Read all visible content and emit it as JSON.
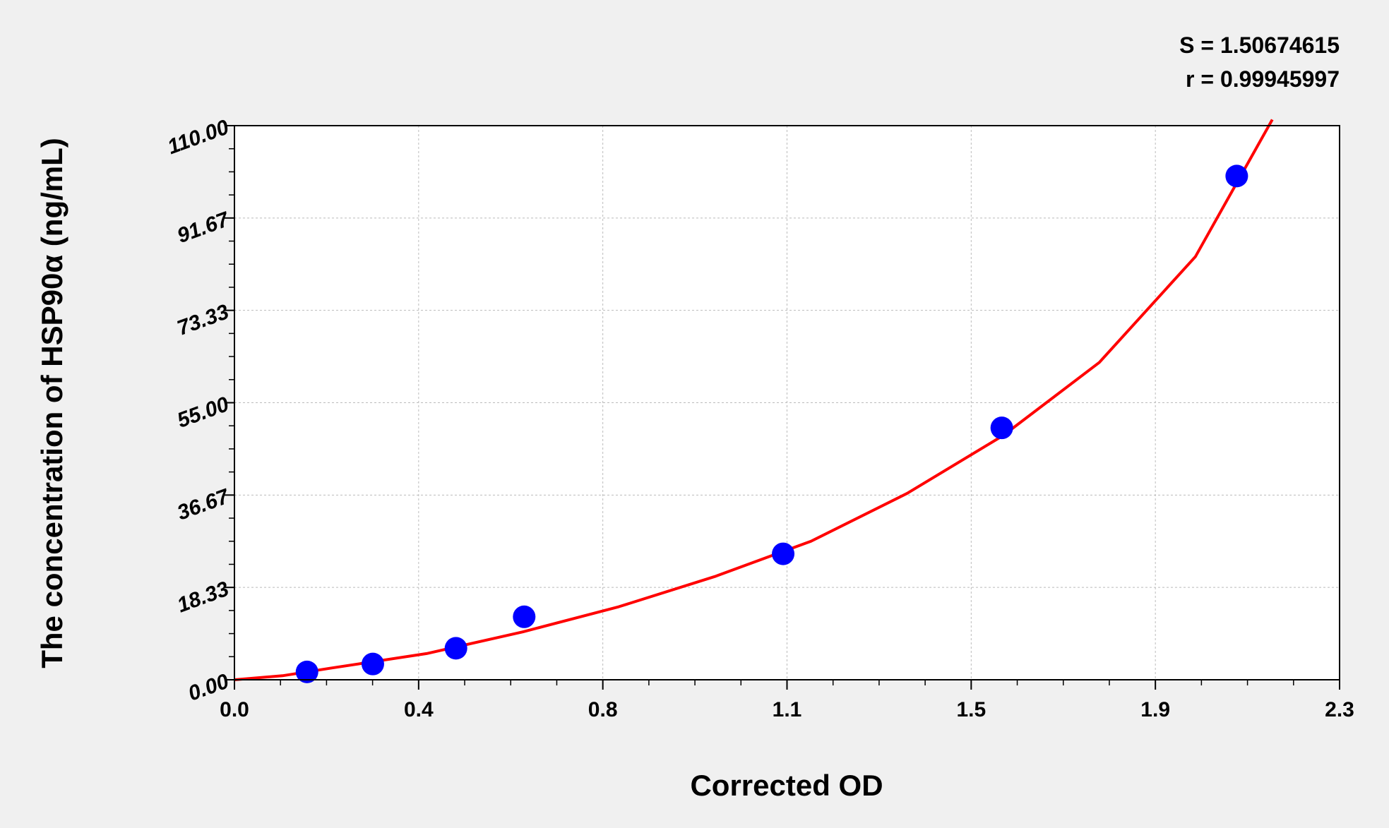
{
  "chart_data": {
    "type": "scatter",
    "x_label": "Corrected OD",
    "y_label": "The concentration of HSP90α (ng/mL)",
    "annotations": [
      "S = 1.50674615",
      "r = 0.99945997"
    ],
    "xlim": [
      0,
      2.3
    ],
    "ylim": [
      0,
      110
    ],
    "xticks": [
      {
        "value": 0,
        "label": "0.0"
      },
      {
        "value": 0.38333,
        "label": "0.4"
      },
      {
        "value": 0.76667,
        "label": "0.8"
      },
      {
        "value": 1.15,
        "label": "1.1"
      },
      {
        "value": 1.53333,
        "label": "1.5"
      },
      {
        "value": 1.91667,
        "label": "1.9"
      },
      {
        "value": 2.3,
        "label": "2.3"
      }
    ],
    "yticks": [
      {
        "value": 0,
        "label": "0.00"
      },
      {
        "value": 18.333,
        "label": "18.33"
      },
      {
        "value": 36.667,
        "label": "36.67"
      },
      {
        "value": 55,
        "label": "55.00"
      },
      {
        "value": 73.333,
        "label": "73.33"
      },
      {
        "value": 91.667,
        "label": "91.67"
      },
      {
        "value": 110,
        "label": "110.00"
      }
    ],
    "grid": true,
    "series": [
      {
        "style": "line",
        "color": "#ff0000",
        "x": [
          0,
          0.1,
          0.2,
          0.4,
          0.6,
          0.8,
          1.0,
          1.2,
          1.4,
          1.6,
          1.8,
          2.0,
          2.16
        ],
        "values": [
          0,
          0.8,
          2.3,
          5.2,
          9.5,
          14.5,
          20.5,
          27.5,
          37,
          48.5,
          63,
          84,
          111.2
        ]
      },
      {
        "style": "marker",
        "color": "#0000ff",
        "x": [
          0.151,
          0.288,
          0.461,
          0.603,
          1.142,
          1.597,
          2.086
        ],
        "values": [
          1.56,
          3.13,
          6.25,
          12.5,
          25,
          50,
          100
        ]
      }
    ]
  }
}
